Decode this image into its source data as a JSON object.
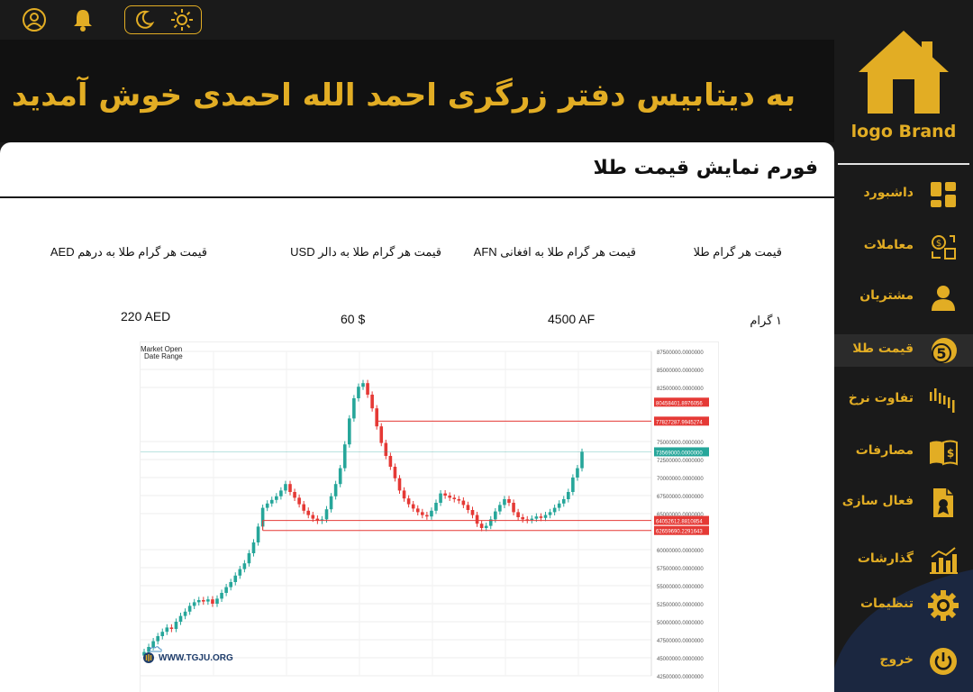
{
  "header": {
    "welcome_title": "به دیتابیس دفتر زرگری احمد الله احمدی خوش آمدید",
    "icons": [
      "user-icon",
      "bell-icon",
      "moon-icon",
      "sun-icon"
    ]
  },
  "page": {
    "form_title": "فورم نمایش قیمت طلا"
  },
  "price_table": {
    "headers": [
      "قیمت هر گرام طلا",
      "قیمت هر گرام طلا به افغانی AFN",
      "قیمت هر گرام طلا به دالر USD",
      "قیمت هر گرام طلا به درهم AED"
    ],
    "values": [
      "۱ گرام",
      "4500 AF",
      "60 $",
      "220 AED"
    ]
  },
  "chart_data": {
    "type": "candlestick",
    "source": "WWW.TGJU.ORG",
    "top_left_labels": [
      "Market Open",
      "Date Range"
    ],
    "y_tick_labels": [
      "87500000.0000000",
      "85000000.0000000",
      "82500000.0000000",
      "75000000.0000000",
      "72500000.0000000",
      "70000000.0000000",
      "67500000.0000000",
      "65000000.0000000",
      "60000000.0000000",
      "57500000.0000000",
      "55000000.0000000",
      "52500000.0000000",
      "50000000.0000000",
      "47500000.0000000",
      "45000000.0000000",
      "42500000.0000000"
    ],
    "ylim": [
      42500000,
      87500000
    ],
    "level_lines": [
      {
        "label": "80458401.8976056",
        "value": 80458401.8976056,
        "color": "#e53935"
      },
      {
        "label": "77827287.9945274",
        "value": 77827287.9945274,
        "color": "#e53935"
      },
      {
        "label": "73569000.0000000",
        "value": 73569000,
        "color": "#26a69a"
      },
      {
        "label": "64052612.8810854",
        "value": 64052612.8810854,
        "color": "#e53935"
      },
      {
        "label": "62659690.2291643",
        "value": 62659690.2291643,
        "color": "#e53935"
      }
    ],
    "up_color": "#26a69a",
    "down_color": "#e53935",
    "closes": [
      45800000,
      46500000,
      47300000,
      48000000,
      48600000,
      49200000,
      49000000,
      50000000,
      50800000,
      51400000,
      52200000,
      52700000,
      53000000,
      52800000,
      53100000,
      52500000,
      53200000,
      54000000,
      54800000,
      55500000,
      56400000,
      57300000,
      58100000,
      59500000,
      61000000,
      63200000,
      65800000,
      66400000,
      66900000,
      67400000,
      68200000,
      69100000,
      68000000,
      67200000,
      66300000,
      65400000,
      64800000,
      64300000,
      64000000,
      64200000,
      65600000,
      67400000,
      69100000,
      71300000,
      74600000,
      78200000,
      81000000,
      82600000,
      83100000,
      81500000,
      79600000,
      77100000,
      74800000,
      73000000,
      71500000,
      69900000,
      68200000,
      67100000,
      66300000,
      65700000,
      65200000,
      64800000,
      64600000,
      65400000,
      66500000,
      67800000,
      67500000,
      67200000,
      67000000,
      66800000,
      66200000,
      65500000,
      64800000,
      63600000,
      63000000,
      63300000,
      64200000,
      65300000,
      66200000,
      67000000,
      66500000,
      65200000,
      64500000,
      64200000,
      64100000,
      64300000,
      64600000,
      64400000,
      64800000,
      65200000,
      65800000,
      66400000,
      67000000,
      68000000,
      70000000,
      71300000,
      73569000
    ]
  },
  "sidebar": {
    "brand": "logo Brand",
    "items": [
      {
        "label": "داشبورد",
        "icon": "dashboard-icon"
      },
      {
        "label": "معاملات",
        "icon": "exchange-icon"
      },
      {
        "label": "مشتریان",
        "icon": "customer-icon"
      },
      {
        "label": "قیمت طلا",
        "icon": "gold-coin-icon",
        "badge": "5",
        "active": true
      },
      {
        "label": "تفاوت نرخ",
        "icon": "rate-bars-icon"
      },
      {
        "label": "مصارفات",
        "icon": "ledger-icon"
      },
      {
        "label": "فعال سازی",
        "icon": "activation-icon"
      },
      {
        "label": "گذارشات",
        "icon": "report-icon"
      },
      {
        "label": "تنظیمات",
        "icon": "gear-icon"
      },
      {
        "label": "خروج",
        "icon": "power-icon"
      }
    ]
  },
  "colors": {
    "accent": "#e2ad24",
    "dark": "#1a1a1a",
    "sidebar_wave": "#1b2740"
  }
}
